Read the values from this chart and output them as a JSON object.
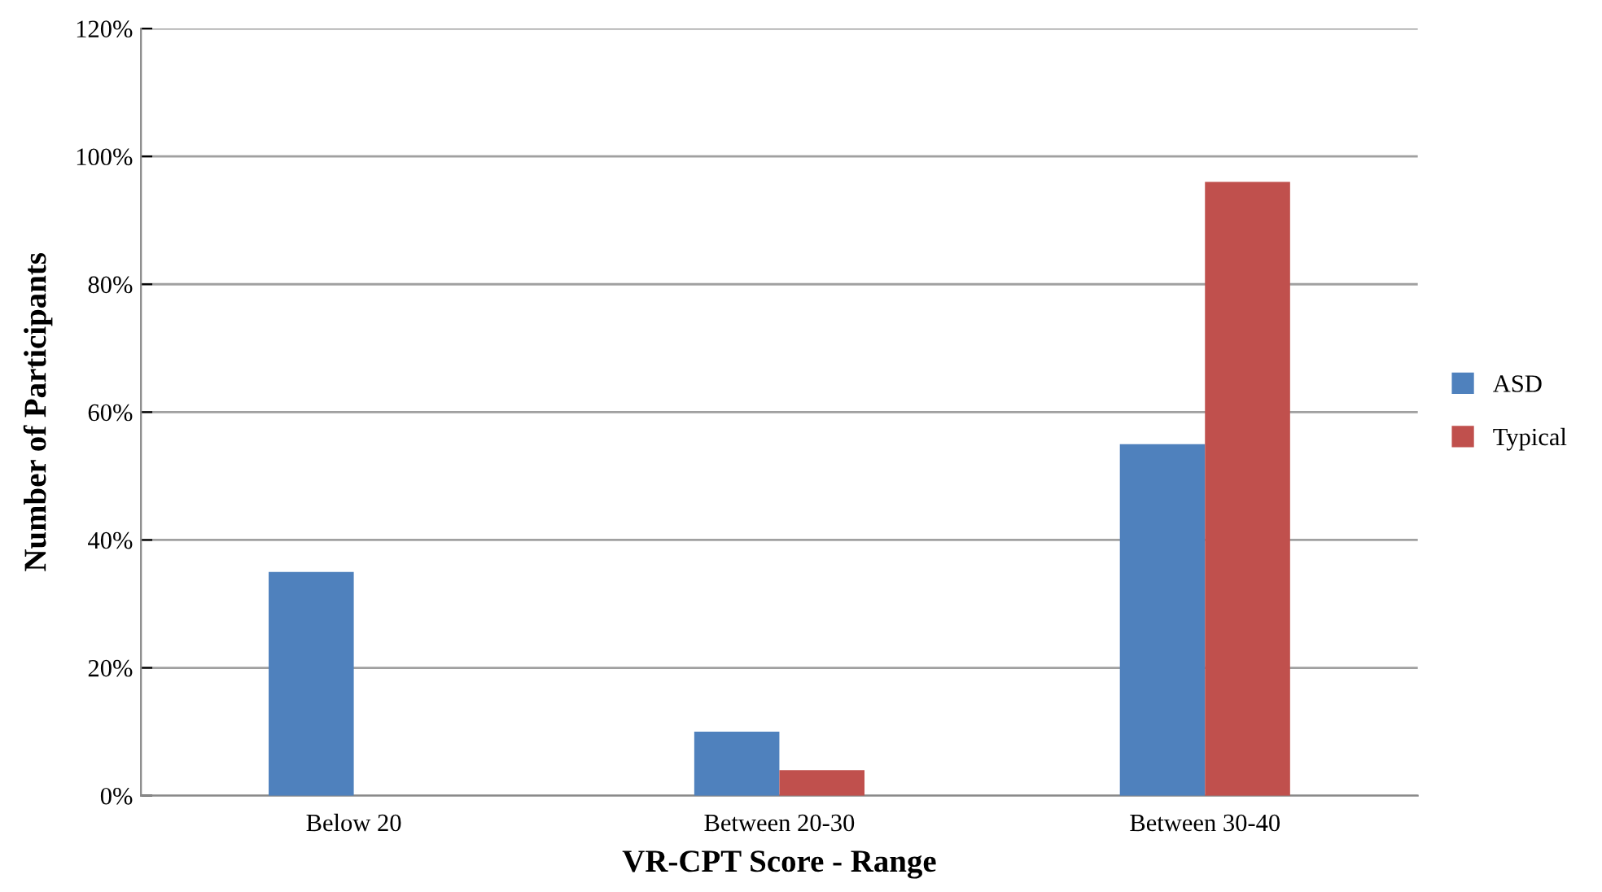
{
  "chart_data": {
    "type": "bar",
    "xlabel": "VR-CPT Score - Range",
    "ylabel": "Number of Participants",
    "categories": [
      "Below 20",
      "Between 20-30",
      "Between 30-40"
    ],
    "series": [
      {
        "name": "ASD",
        "color": "#4f81bd",
        "values": [
          35,
          10,
          55
        ]
      },
      {
        "name": "Typical",
        "color": "#c0504d",
        "values": [
          0,
          4,
          96
        ]
      }
    ],
    "ylim": [
      0,
      120
    ],
    "yticks": [
      {
        "value": 0,
        "label": "0%"
      },
      {
        "value": 20,
        "label": "20%"
      },
      {
        "value": 40,
        "label": "40%"
      },
      {
        "value": 60,
        "label": "60%"
      },
      {
        "value": 80,
        "label": "80%"
      },
      {
        "value": 100,
        "label": "100%"
      },
      {
        "value": 120,
        "label": "120%"
      }
    ],
    "grid": "y",
    "legend": "right"
  }
}
